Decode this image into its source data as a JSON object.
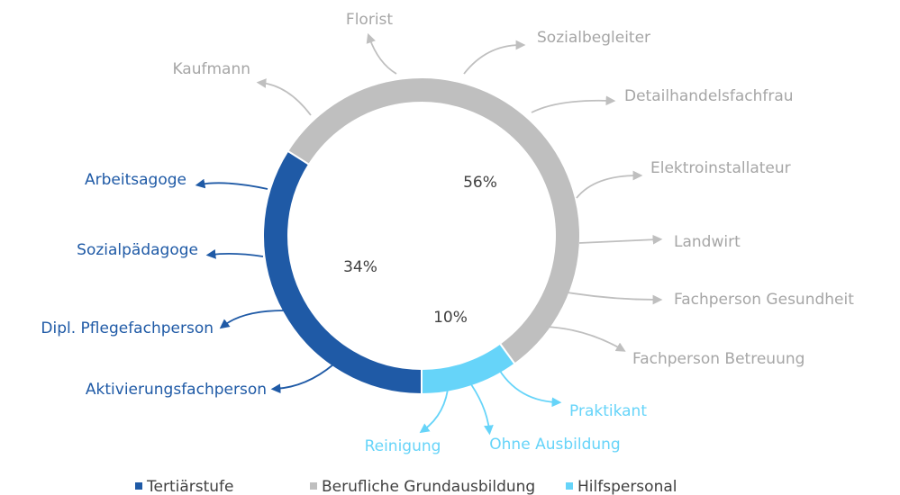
{
  "chart_data": {
    "type": "donut",
    "categories": [
      "Tertiärstufe",
      "Berufliche Grundausbildung",
      "Hilfspersonal"
    ],
    "values": [
      34,
      56,
      10
    ],
    "value_labels": [
      "34%",
      "56%",
      "10%"
    ],
    "colors": [
      "#1f5aa6",
      "#bfbfbf",
      "#66d4f9"
    ],
    "callouts": [
      [
        "Arbeitsagoge",
        "Sozialpädagoge",
        "Dipl. Pflegefachperson",
        "Aktivierungsfachperson"
      ],
      [
        "Florist",
        "Sozialbegleiter",
        "Kaufmann",
        "Detailhandelsfachfrau",
        "Elektroinstallateur",
        "Landwirt",
        "Fachperson Gesundheit",
        "Fachperson Betreuung"
      ],
      [
        "Praktikant",
        "Reinigung",
        "Ohne Ausbildung"
      ]
    ],
    "legend": "bottom"
  }
}
